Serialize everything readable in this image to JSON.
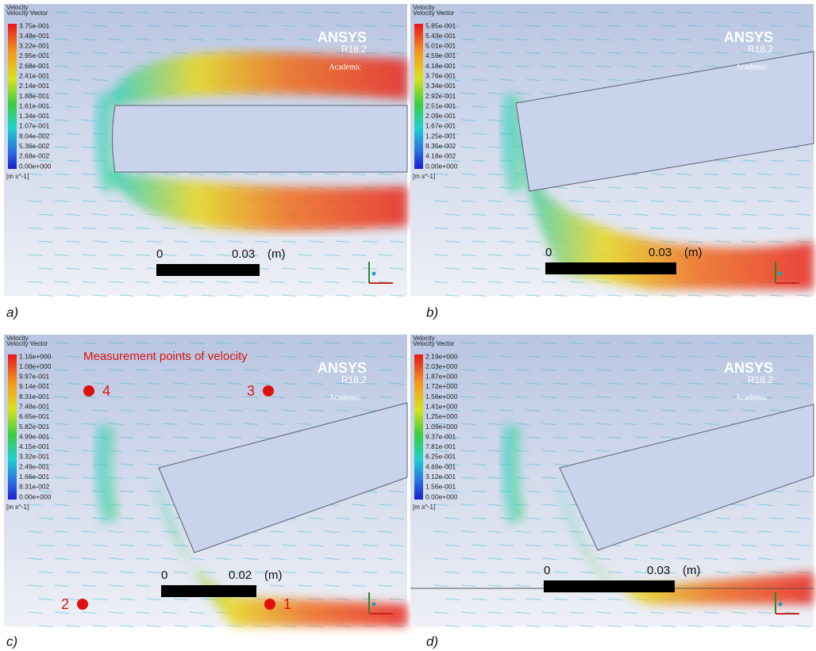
{
  "panels": [
    {
      "caption": "a)",
      "legend": {
        "title": "Velocity",
        "subtitle": "Velocity Vector",
        "unit": "[m s^-1]",
        "labels": [
          "3.75e-001",
          "3.48e-001",
          "3.22e-001",
          "2.95e-001",
          "2.68e-001",
          "2.41e-001",
          "2.14e-001",
          "1.88e-001",
          "1.61e-001",
          "1.34e-001",
          "1.07e-001",
          "8.04e-002",
          "5.36e-002",
          "2.68e-002",
          "0.00e+000"
        ]
      },
      "brand": "ANSYS",
      "version": "R18.2",
      "edition": "Academic",
      "scale": {
        "start": "0",
        "end": "0.03",
        "unit": "(m)"
      }
    },
    {
      "caption": "b)",
      "legend": {
        "title": "Velocity",
        "subtitle": "Velocity Vector",
        "unit": "[m s^-1]",
        "labels": [
          "5.85e-001",
          "5.43e-001",
          "5.01e-001",
          "4.59e-001",
          "4.18e-001",
          "3.76e-001",
          "3.34e-001",
          "2.92e-001",
          "2.51e-001",
          "2.09e-001",
          "1.67e-001",
          "1.25e-001",
          "8.35e-002",
          "4.18e-002",
          "0.00e+000"
        ]
      },
      "brand": "ANSYS",
      "version": "R18.2",
      "edition": "Academic",
      "scale": {
        "start": "0",
        "end": "0.03",
        "unit": "(m)"
      }
    },
    {
      "caption": "c)",
      "legend": {
        "title": "Velocity",
        "subtitle": "Velocity Vector",
        "unit": "[m s^-1]",
        "labels": [
          "1.16e+000",
          "1.08e+000",
          "9.97e-001",
          "9.14e-001",
          "8.31e-001",
          "7.48e-001",
          "6.65e-001",
          "5.82e-001",
          "4.99e-001",
          "4.15e-001",
          "3.32e-001",
          "2.49e-001",
          "1.66e-001",
          "8.31e-002",
          "0.00e+000"
        ]
      },
      "brand": "ANSYS",
      "version": "R18.2",
      "edition": "Academic",
      "scale": {
        "start": "0",
        "end": "0.02",
        "unit": "(m)"
      },
      "annotation": "Measurement points of velocity",
      "points": [
        "1",
        "2",
        "3",
        "4"
      ]
    },
    {
      "caption": "d)",
      "legend": {
        "title": "Velocity",
        "subtitle": "Velocity Vector",
        "unit": "[m s^-1]",
        "labels": [
          "2.19e+000",
          "2.03e+000",
          "1.87e+000",
          "1.72e+000",
          "1.56e+000",
          "1.41e+000",
          "1.25e+000",
          "1.09e+000",
          "9.37e-001",
          "7.81e-001",
          "6.25e-001",
          "4.69e-001",
          "3.12e-001",
          "1.56e-001",
          "0.00e+000"
        ]
      },
      "brand": "ANSYS",
      "version": "R18.2",
      "edition": "Academic",
      "scale": {
        "start": "0",
        "end": "0.03",
        "unit": "(m)"
      }
    }
  ]
}
